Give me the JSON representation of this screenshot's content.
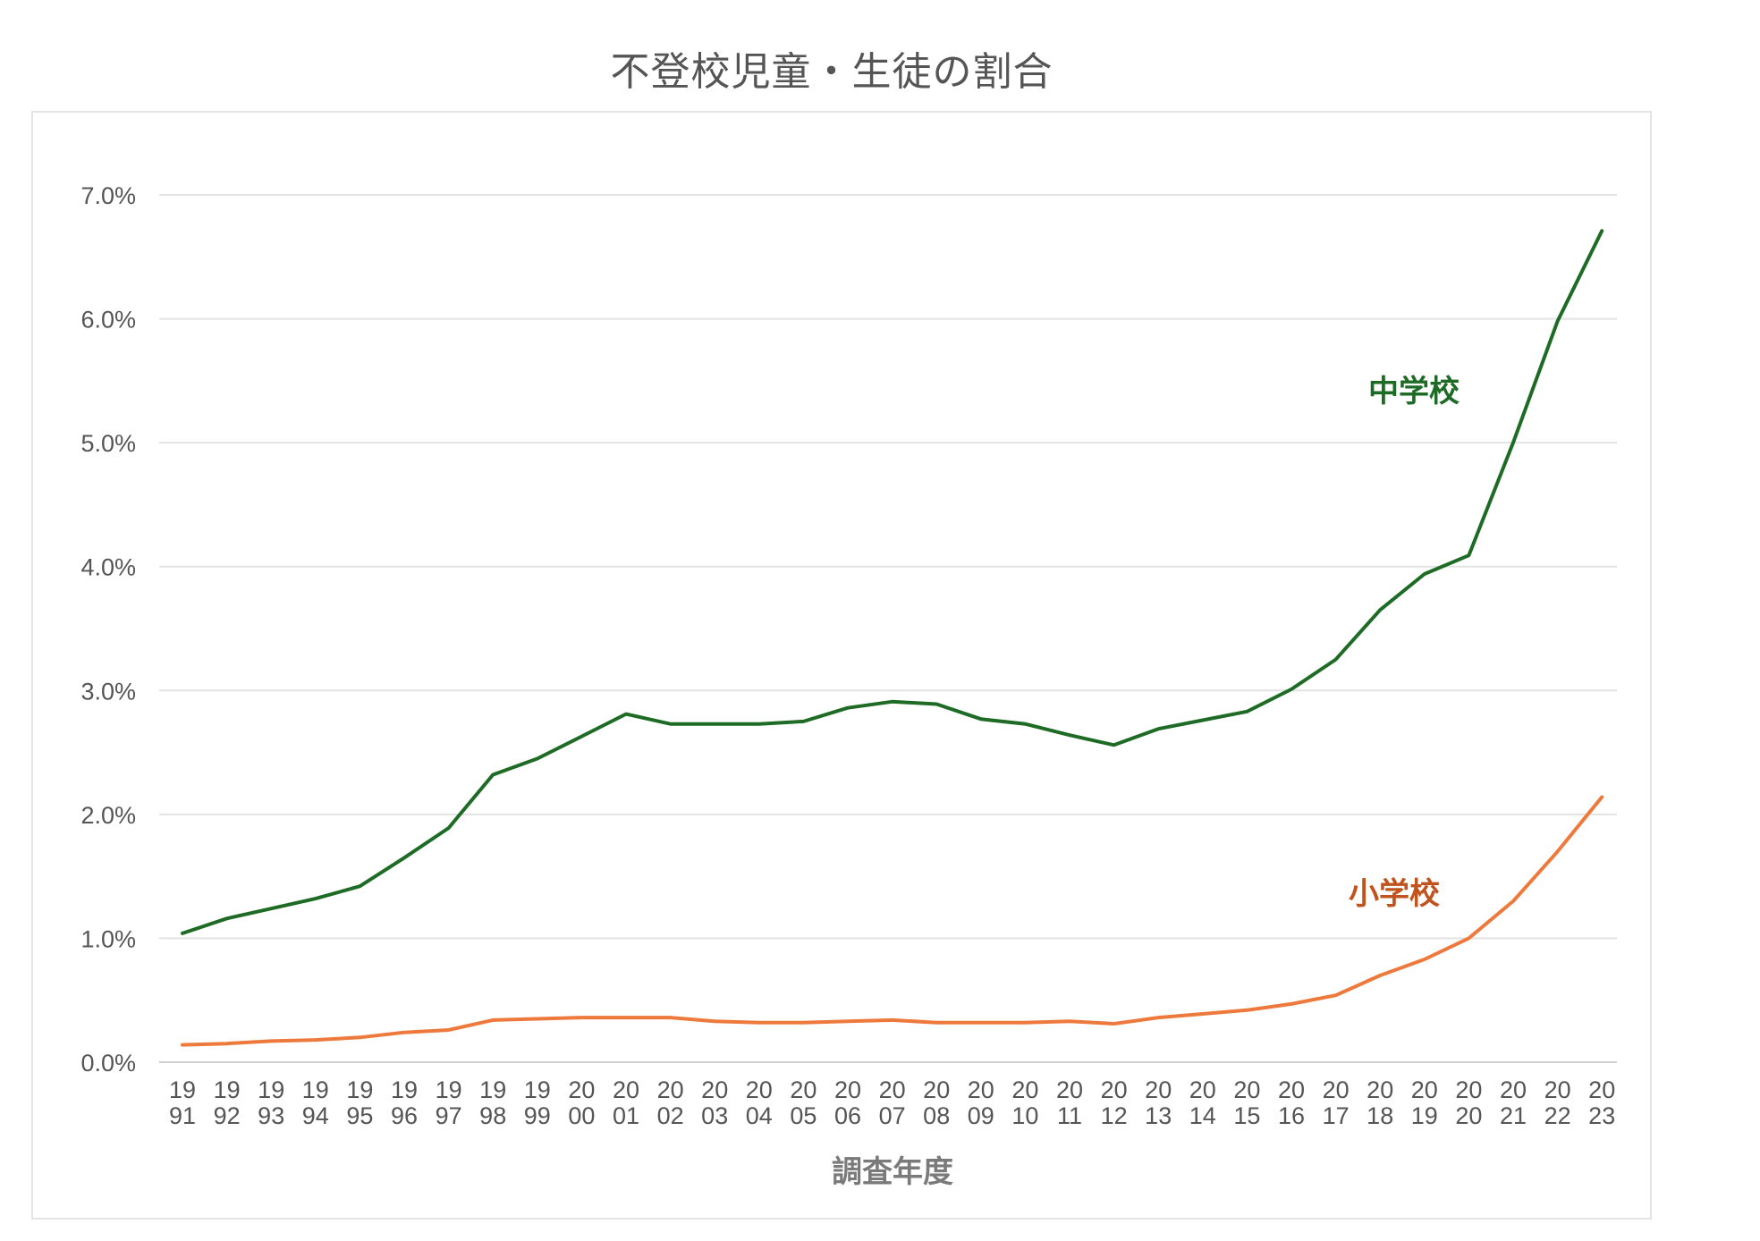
{
  "chart_data": {
    "type": "line",
    "title": "不登校児童・生徒の割合",
    "xlabel": "調査年度",
    "ylabel": "",
    "ylim": [
      0,
      7
    ],
    "yticks": [
      "0.0%",
      "1.0%",
      "2.0%",
      "3.0%",
      "4.0%",
      "5.0%",
      "6.0%",
      "7.0%"
    ],
    "grid": true,
    "legend": "inline labels",
    "categories": [
      [
        "19",
        "91"
      ],
      [
        "19",
        "92"
      ],
      [
        "19",
        "93"
      ],
      [
        "19",
        "94"
      ],
      [
        "19",
        "95"
      ],
      [
        "19",
        "96"
      ],
      [
        "19",
        "97"
      ],
      [
        "19",
        "98"
      ],
      [
        "19",
        "99"
      ],
      [
        "20",
        "00"
      ],
      [
        "20",
        "01"
      ],
      [
        "20",
        "02"
      ],
      [
        "20",
        "03"
      ],
      [
        "20",
        "04"
      ],
      [
        "20",
        "05"
      ],
      [
        "20",
        "06"
      ],
      [
        "20",
        "07"
      ],
      [
        "20",
        "08"
      ],
      [
        "20",
        "09"
      ],
      [
        "20",
        "10"
      ],
      [
        "20",
        "11"
      ],
      [
        "20",
        "12"
      ],
      [
        "20",
        "13"
      ],
      [
        "20",
        "14"
      ],
      [
        "20",
        "15"
      ],
      [
        "20",
        "16"
      ],
      [
        "20",
        "17"
      ],
      [
        "20",
        "18"
      ],
      [
        "20",
        "19"
      ],
      [
        "20",
        "20"
      ],
      [
        "20",
        "21"
      ],
      [
        "20",
        "22"
      ],
      [
        "20",
        "23"
      ]
    ],
    "series": [
      {
        "name": "中学校",
        "color": "#1e6b25",
        "values": [
          1.04,
          1.16,
          1.24,
          1.32,
          1.42,
          1.65,
          1.89,
          2.32,
          2.45,
          2.63,
          2.81,
          2.73,
          2.73,
          2.73,
          2.75,
          2.86,
          2.91,
          2.89,
          2.77,
          2.73,
          2.64,
          2.56,
          2.69,
          2.76,
          2.83,
          3.01,
          3.25,
          3.65,
          3.94,
          4.09,
          5.0,
          5.98,
          6.71
        ]
      },
      {
        "name": "小学校",
        "color": "#ed7a3c",
        "values": [
          0.14,
          0.15,
          0.17,
          0.18,
          0.2,
          0.24,
          0.26,
          0.34,
          0.35,
          0.36,
          0.36,
          0.36,
          0.33,
          0.32,
          0.32,
          0.33,
          0.34,
          0.32,
          0.32,
          0.32,
          0.33,
          0.31,
          0.36,
          0.39,
          0.42,
          0.47,
          0.54,
          0.7,
          0.83,
          1.0,
          1.3,
          1.7,
          2.14
        ]
      }
    ]
  }
}
